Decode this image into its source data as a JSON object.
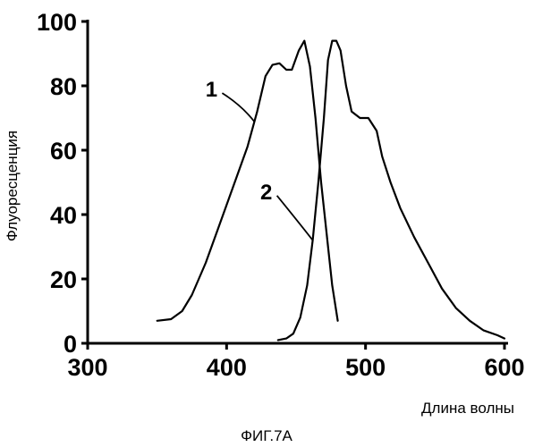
{
  "chart_data": {
    "type": "line",
    "xlabel": "Длина волны",
    "ylabel": "Флуоресценция",
    "caption": "ФИГ.7А",
    "xlim": [
      300,
      600
    ],
    "ylim": [
      0,
      100
    ],
    "x_ticks": [
      300,
      400,
      500,
      600
    ],
    "y_ticks": [
      0,
      20,
      40,
      60,
      80,
      100
    ],
    "grid": false,
    "series": [
      {
        "name": "1",
        "color": "#000000",
        "x": [
          350,
          360,
          368,
          375,
          385,
          395,
          405,
          415,
          422,
          428,
          433,
          438,
          443,
          447,
          452,
          456,
          460,
          464,
          468,
          472,
          476,
          480
        ],
        "y": [
          7,
          7.5,
          10,
          15,
          25,
          37,
          49,
          61,
          72,
          83,
          86.5,
          87,
          85,
          85,
          91,
          94,
          86,
          70,
          50,
          34,
          18,
          7
        ]
      },
      {
        "name": "2",
        "color": "#000000",
        "x": [
          437,
          443,
          448,
          453,
          458,
          462,
          466,
          470,
          473,
          476,
          479,
          482,
          486,
          490,
          496,
          502,
          508,
          512,
          518,
          525,
          535,
          545,
          555,
          565,
          575,
          585,
          595,
          600
        ],
        "y": [
          1,
          1.5,
          3,
          8,
          18,
          32,
          50,
          70,
          88,
          94,
          94,
          91,
          80,
          72,
          70,
          70,
          66,
          58,
          50,
          42,
          33,
          25,
          17,
          11,
          7,
          4,
          2.5,
          1.5
        ]
      }
    ],
    "annotations": [
      {
        "text": "1",
        "series": 0,
        "at_x": 420
      },
      {
        "text": "2",
        "series": 1,
        "at_x": 462
      }
    ]
  }
}
